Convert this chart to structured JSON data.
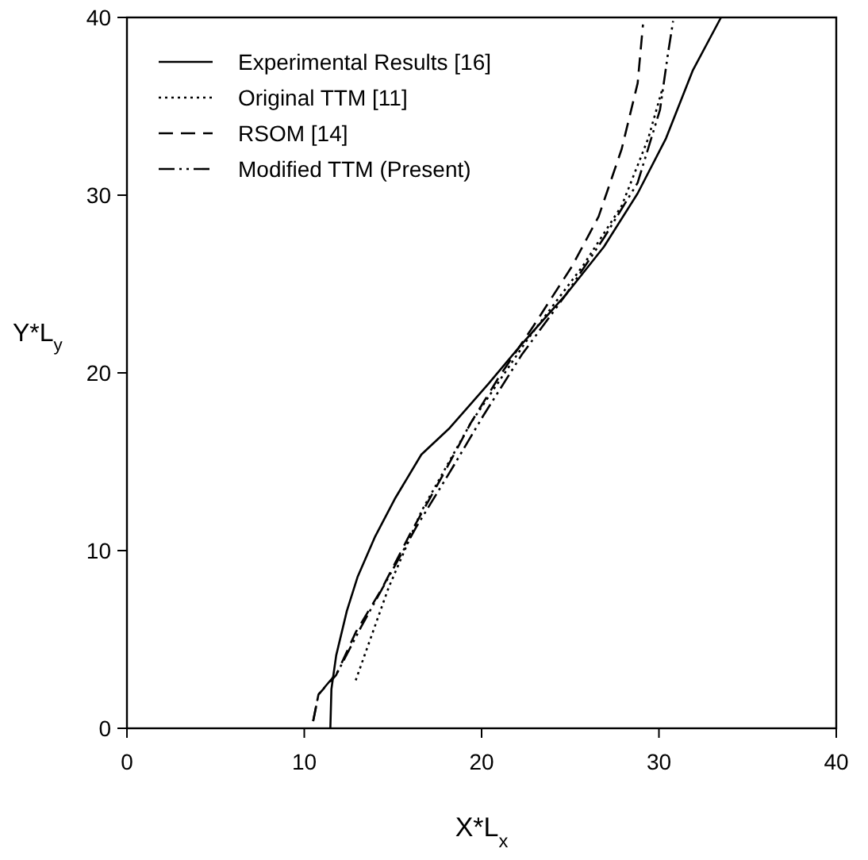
{
  "chart_data": {
    "type": "line",
    "xlabel": "X*L$_{x}$",
    "ylabel": "Y*L$_{y}$",
    "xlim": [
      0,
      40
    ],
    "ylim": [
      0,
      40
    ],
    "xticks": [
      0,
      10,
      20,
      30,
      40
    ],
    "yticks": [
      0,
      10,
      20,
      30,
      40
    ],
    "legend": "top left",
    "grid": false,
    "series": [
      {
        "name": "Experimental Results [16]",
        "color": "#000000",
        "line_style": "solid",
        "x": [
          11.47,
          11.53,
          11.8,
          12.4,
          13.0,
          14.0,
          15.1,
          16.6,
          18.2,
          20.4,
          22.25,
          24.75,
          26.9,
          28.8,
          30.4,
          31.9,
          33.5
        ],
        "values": [
          0,
          2.2,
          4.1,
          6.6,
          8.5,
          10.8,
          12.9,
          15.4,
          16.9,
          19.4,
          21.6,
          24.4,
          27.1,
          30.1,
          33.2,
          37.0,
          40
        ]
      },
      {
        "name": "Original TTM [11]",
        "color": "#000000",
        "line_style": "dotted",
        "x": [
          12.9,
          14.75,
          16.6,
          19.4,
          22.6,
          25.7,
          27.9,
          29.4,
          30.2
        ],
        "values": [
          2.7,
          7.9,
          12.2,
          17.2,
          21.9,
          26,
          29.4,
          33.2,
          36
        ]
      },
      {
        "name": "RSOM [14]",
        "color": "#000000",
        "line_style": "dashed",
        "x": [
          10.5,
          10.8,
          11.8,
          12.9,
          14.4,
          16.0,
          17.9,
          19.4,
          21,
          22.9,
          25.1,
          26.6,
          27.9,
          28.8,
          29.1
        ],
        "values": [
          0.4,
          1.9,
          3.0,
          5.4,
          7.9,
          11,
          14.4,
          17.2,
          19.8,
          22.6,
          26,
          28.8,
          32.6,
          36.3,
          39.6
        ]
      },
      {
        "name": "Modified TTM (Present)",
        "color": "#000000",
        "line_style": "dashdot",
        "x": [
          10.5,
          10.8,
          11.9,
          13.2,
          14.75,
          16.3,
          18.2,
          20.1,
          22.25,
          24.75,
          26.9,
          28.8,
          30.06,
          30.5,
          30.8
        ],
        "values": [
          0.4,
          1.9,
          3.2,
          5.7,
          8.5,
          11.3,
          14.4,
          17.6,
          21,
          24.4,
          27.6,
          30.7,
          34.8,
          37.9,
          39.8
        ]
      }
    ]
  }
}
